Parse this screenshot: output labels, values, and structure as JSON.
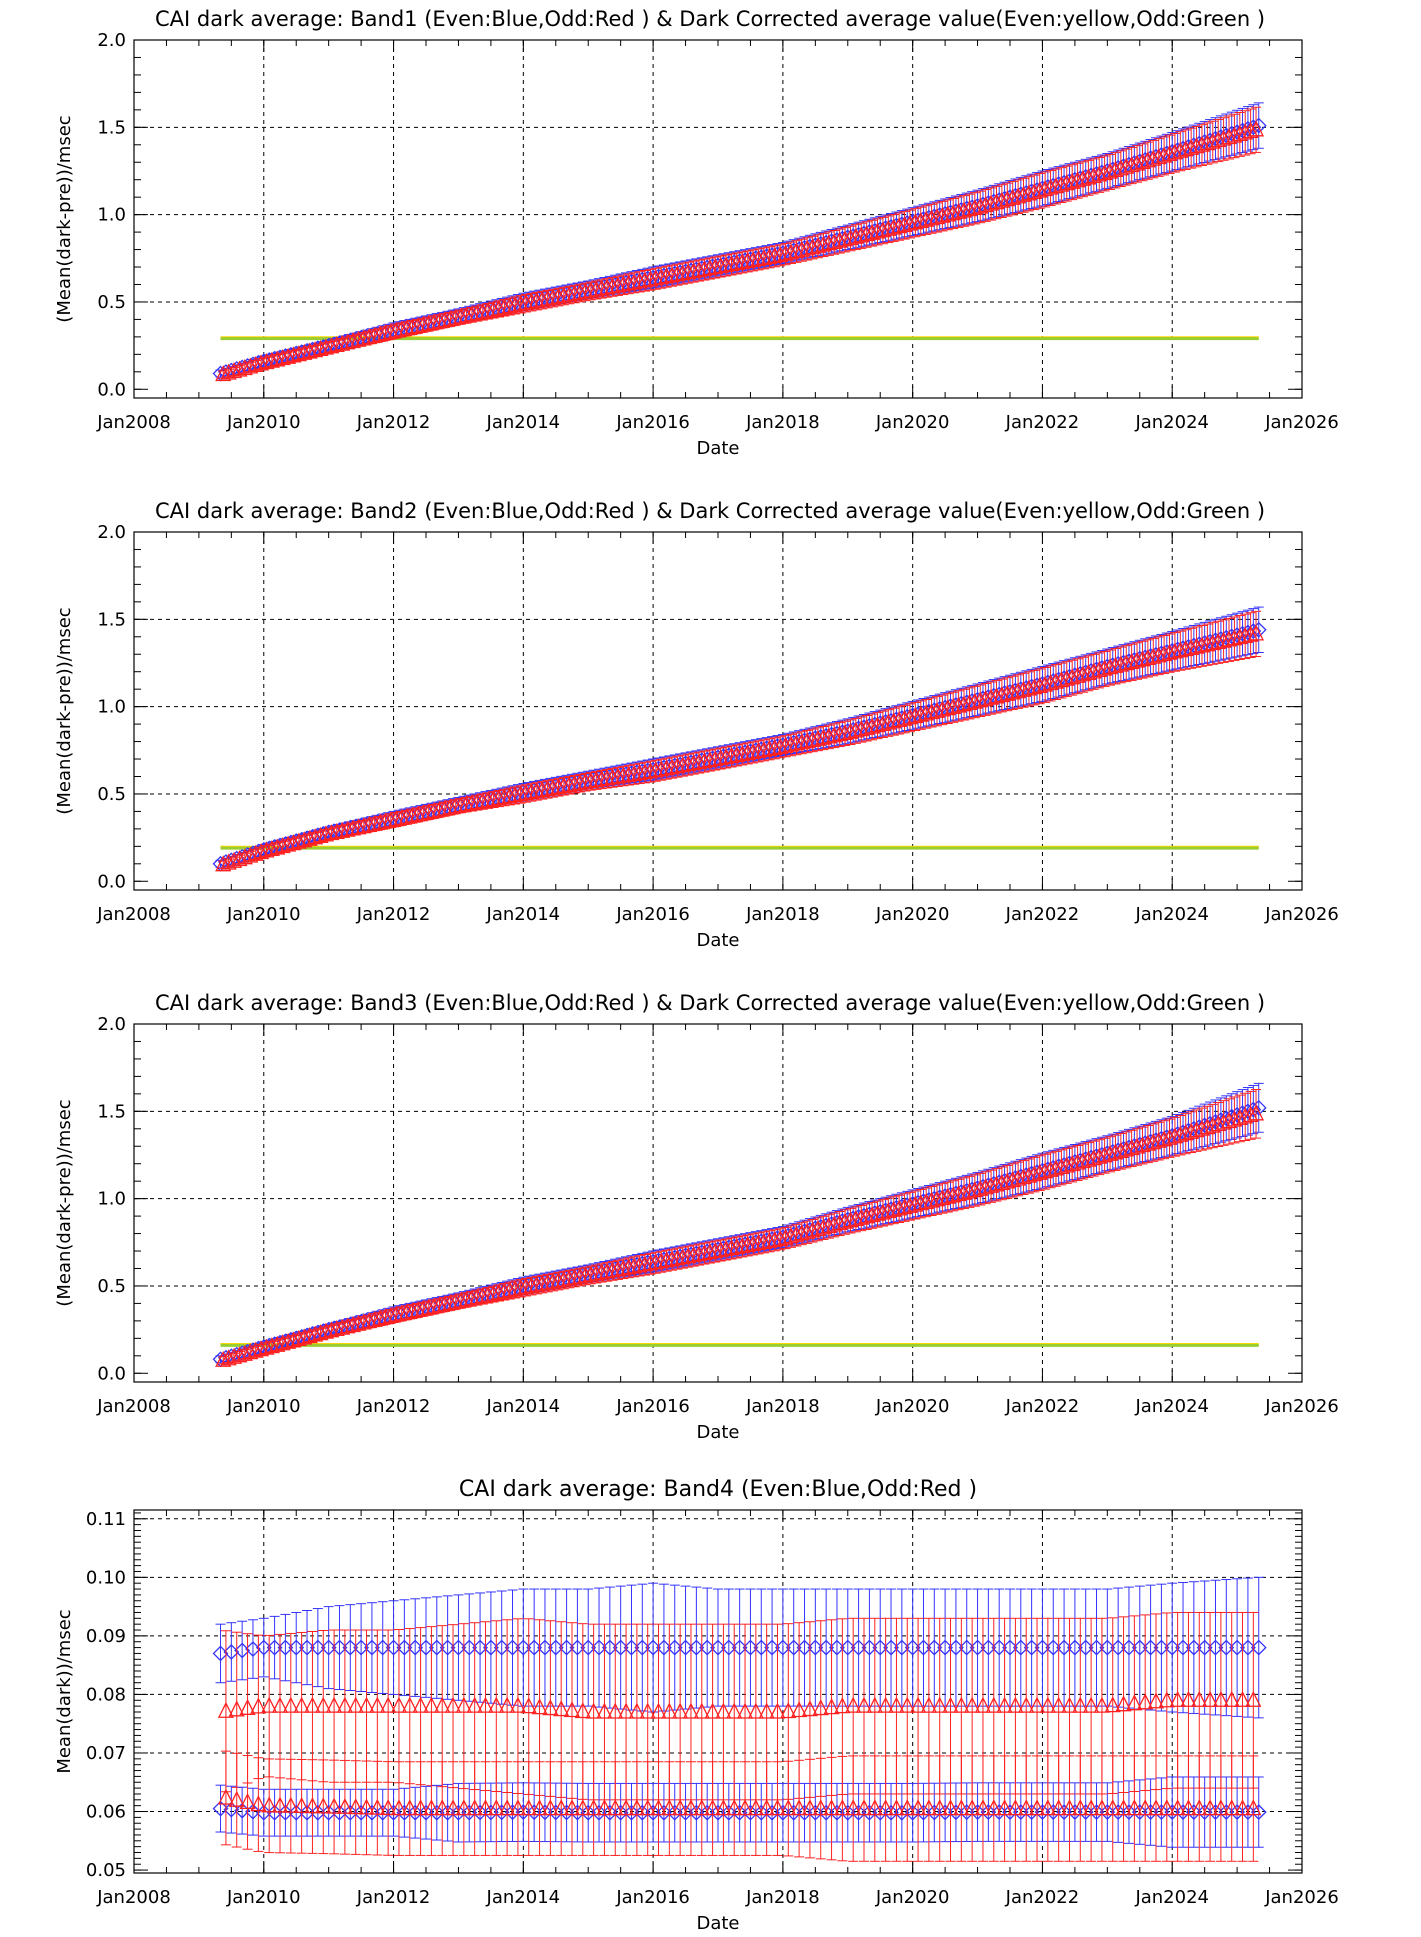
{
  "chart_data": [
    {
      "type": "scatter",
      "title": "CAI dark average: Band1 (Even:Blue,Odd:Red ) & Dark Corrected average value(Even:yellow,Odd:Green )",
      "xlabel": "Date",
      "ylabel": "(Mean(dark-pre))/msec",
      "x_tick_labels": [
        "Jan2008",
        "Jan2010",
        "Jan2012",
        "Jan2014",
        "Jan2016",
        "Jan2018",
        "Jan2020",
        "Jan2022",
        "Jan2024",
        "Jan2026"
      ],
      "y_tick_labels": [
        "0.0",
        "0.5",
        "1.0",
        "1.5",
        "2.0"
      ],
      "xlim": [
        "2008-01",
        "2026-01"
      ],
      "ylim": [
        -0.05,
        2.0
      ],
      "grid": "dashed",
      "x": [
        "2009-05",
        "2010-01",
        "2011-01",
        "2012-01",
        "2013-01",
        "2014-01",
        "2015-01",
        "2016-01",
        "2017-01",
        "2018-01",
        "2019-01",
        "2020-01",
        "2021-01",
        "2022-01",
        "2023-01",
        "2024-01",
        "2025-05"
      ],
      "series": [
        {
          "name": "Even",
          "color": "#3333ff",
          "marker": "diamond",
          "values": [
            0.09,
            0.16,
            0.25,
            0.34,
            0.42,
            0.5,
            0.57,
            0.64,
            0.71,
            0.78,
            0.87,
            0.96,
            1.05,
            1.15,
            1.25,
            1.36,
            1.51
          ],
          "error": [
            0.02,
            0.03,
            0.03,
            0.04,
            0.04,
            0.05,
            0.05,
            0.06,
            0.06,
            0.06,
            0.07,
            0.08,
            0.09,
            0.1,
            0.1,
            0.11,
            0.13
          ]
        },
        {
          "name": "Odd",
          "color": "#ff2020",
          "marker": "triangle",
          "values": [
            0.08,
            0.15,
            0.24,
            0.33,
            0.41,
            0.49,
            0.56,
            0.63,
            0.7,
            0.77,
            0.86,
            0.95,
            1.04,
            1.14,
            1.24,
            1.35,
            1.49
          ],
          "error": [
            0.02,
            0.03,
            0.03,
            0.04,
            0.04,
            0.05,
            0.05,
            0.06,
            0.06,
            0.06,
            0.07,
            0.08,
            0.09,
            0.1,
            0.1,
            0.11,
            0.13
          ]
        }
      ],
      "reference_lines": [
        {
          "color": "#ffd700",
          "y": 0.295
        },
        {
          "color": "#9acd32",
          "y": 0.29
        }
      ]
    },
    {
      "type": "scatter",
      "title": "CAI dark average: Band2 (Even:Blue,Odd:Red ) & Dark Corrected average value(Even:yellow,Odd:Green )",
      "xlabel": "Date",
      "ylabel": "(Mean(dark-pre))/msec",
      "x_tick_labels": [
        "Jan2008",
        "Jan2010",
        "Jan2012",
        "Jan2014",
        "Jan2016",
        "Jan2018",
        "Jan2020",
        "Jan2022",
        "Jan2024",
        "Jan2026"
      ],
      "y_tick_labels": [
        "0.0",
        "0.5",
        "1.0",
        "1.5",
        "2.0"
      ],
      "xlim": [
        "2008-01",
        "2026-01"
      ],
      "ylim": [
        -0.05,
        2.0
      ],
      "grid": "dashed",
      "x": [
        "2009-05",
        "2010-01",
        "2011-01",
        "2012-01",
        "2013-01",
        "2014-01",
        "2015-01",
        "2016-01",
        "2017-01",
        "2018-01",
        "2019-01",
        "2020-01",
        "2021-01",
        "2022-01",
        "2023-01",
        "2024-01",
        "2025-05"
      ],
      "series": [
        {
          "name": "Even",
          "color": "#3333ff",
          "marker": "diamond",
          "values": [
            0.1,
            0.18,
            0.28,
            0.36,
            0.44,
            0.51,
            0.58,
            0.64,
            0.71,
            0.78,
            0.86,
            0.95,
            1.04,
            1.13,
            1.23,
            1.32,
            1.44
          ],
          "error": [
            0.02,
            0.03,
            0.03,
            0.04,
            0.04,
            0.05,
            0.05,
            0.06,
            0.06,
            0.06,
            0.07,
            0.08,
            0.09,
            0.1,
            0.1,
            0.11,
            0.13
          ]
        },
        {
          "name": "Odd",
          "color": "#ff2020",
          "marker": "triangle",
          "values": [
            0.09,
            0.17,
            0.27,
            0.35,
            0.43,
            0.5,
            0.57,
            0.63,
            0.7,
            0.77,
            0.85,
            0.94,
            1.03,
            1.12,
            1.22,
            1.31,
            1.42
          ],
          "error": [
            0.02,
            0.03,
            0.03,
            0.04,
            0.04,
            0.05,
            0.05,
            0.06,
            0.06,
            0.06,
            0.07,
            0.08,
            0.09,
            0.1,
            0.1,
            0.11,
            0.13
          ]
        }
      ],
      "reference_lines": [
        {
          "color": "#ffd700",
          "y": 0.195
        },
        {
          "color": "#9acd32",
          "y": 0.19
        }
      ]
    },
    {
      "type": "scatter",
      "title": "CAI dark average: Band3 (Even:Blue,Odd:Red ) & Dark Corrected average value(Even:yellow,Odd:Green )",
      "xlabel": "Date",
      "ylabel": "(Mean(dark-pre))/msec",
      "x_tick_labels": [
        "Jan2008",
        "Jan2010",
        "Jan2012",
        "Jan2014",
        "Jan2016",
        "Jan2018",
        "Jan2020",
        "Jan2022",
        "Jan2024",
        "Jan2026"
      ],
      "y_tick_labels": [
        "0.0",
        "0.5",
        "1.0",
        "1.5",
        "2.0"
      ],
      "xlim": [
        "2008-01",
        "2026-01"
      ],
      "ylim": [
        -0.05,
        2.0
      ],
      "grid": "dashed",
      "x": [
        "2009-05",
        "2010-01",
        "2011-01",
        "2012-01",
        "2013-01",
        "2014-01",
        "2015-01",
        "2016-01",
        "2017-01",
        "2018-01",
        "2019-01",
        "2020-01",
        "2021-01",
        "2022-01",
        "2023-01",
        "2024-01",
        "2025-05"
      ],
      "series": [
        {
          "name": "Even",
          "color": "#3333ff",
          "marker": "diamond",
          "values": [
            0.08,
            0.15,
            0.25,
            0.34,
            0.42,
            0.5,
            0.57,
            0.64,
            0.71,
            0.78,
            0.88,
            0.97,
            1.06,
            1.16,
            1.26,
            1.36,
            1.52
          ],
          "error": [
            0.02,
            0.03,
            0.03,
            0.04,
            0.04,
            0.05,
            0.05,
            0.06,
            0.06,
            0.06,
            0.07,
            0.08,
            0.09,
            0.1,
            0.1,
            0.11,
            0.14
          ]
        },
        {
          "name": "Odd",
          "color": "#ff2020",
          "marker": "triangle",
          "values": [
            0.07,
            0.14,
            0.24,
            0.33,
            0.41,
            0.49,
            0.56,
            0.63,
            0.7,
            0.77,
            0.87,
            0.96,
            1.05,
            1.15,
            1.25,
            1.35,
            1.49
          ],
          "error": [
            0.02,
            0.03,
            0.03,
            0.04,
            0.04,
            0.05,
            0.05,
            0.06,
            0.06,
            0.06,
            0.07,
            0.08,
            0.09,
            0.1,
            0.1,
            0.11,
            0.14
          ]
        }
      ],
      "reference_lines": [
        {
          "color": "#ffd700",
          "y": 0.165
        },
        {
          "color": "#9acd32",
          "y": 0.16
        }
      ]
    },
    {
      "type": "scatter",
      "title": "CAI dark average: Band4 (Even:Blue,Odd:Red )",
      "xlabel": "Date",
      "ylabel": "Mean(dark))/msec",
      "x_tick_labels": [
        "Jan2008",
        "Jan2010",
        "Jan2012",
        "Jan2014",
        "Jan2016",
        "Jan2018",
        "Jan2020",
        "Jan2022",
        "Jan2024",
        "Jan2026"
      ],
      "y_tick_labels": [
        "0.05",
        "0.06",
        "0.07",
        "0.08",
        "0.09",
        "0.10",
        "0.11"
      ],
      "xlim": [
        "2008-01",
        "2026-01"
      ],
      "ylim": [
        0.0495,
        0.1115
      ],
      "grid": "dashed",
      "x": [
        "2009-05",
        "2010-01",
        "2011-01",
        "2012-01",
        "2013-01",
        "2014-01",
        "2015-01",
        "2016-01",
        "2017-01",
        "2018-01",
        "2019-01",
        "2020-01",
        "2021-01",
        "2022-01",
        "2023-01",
        "2024-01",
        "2025-05"
      ],
      "series": [
        {
          "name": "Even (upper)",
          "color": "#3333ff",
          "marker": "diamond",
          "values": [
            0.087,
            0.088,
            0.088,
            0.088,
            0.088,
            0.088,
            0.088,
            0.088,
            0.088,
            0.088,
            0.088,
            0.088,
            0.088,
            0.088,
            0.088,
            0.088,
            0.088
          ],
          "error": [
            0.005,
            0.005,
            0.007,
            0.008,
            0.009,
            0.01,
            0.01,
            0.011,
            0.01,
            0.01,
            0.01,
            0.01,
            0.01,
            0.01,
            0.01,
            0.011,
            0.012
          ]
        },
        {
          "name": "Odd (upper)",
          "color": "#ff2020",
          "marker": "triangle",
          "values": [
            0.077,
            0.078,
            0.078,
            0.078,
            0.078,
            0.078,
            0.077,
            0.077,
            0.077,
            0.077,
            0.078,
            0.078,
            0.078,
            0.078,
            0.078,
            0.079,
            0.079
          ],
          "error": [
            0.014,
            0.012,
            0.013,
            0.013,
            0.014,
            0.015,
            0.015,
            0.015,
            0.015,
            0.015,
            0.015,
            0.015,
            0.015,
            0.015,
            0.015,
            0.015,
            0.015
          ]
        },
        {
          "name": "Even (lower)",
          "color": "#3333ff",
          "marker": "diamond",
          "values": [
            0.0605,
            0.0598,
            0.0598,
            0.0598,
            0.0598,
            0.0599,
            0.0598,
            0.0598,
            0.0598,
            0.0598,
            0.0598,
            0.0598,
            0.0599,
            0.0599,
            0.0599,
            0.0599,
            0.0599
          ],
          "error": [
            0.004,
            0.004,
            0.004,
            0.004,
            0.005,
            0.005,
            0.005,
            0.005,
            0.005,
            0.005,
            0.005,
            0.005,
            0.005,
            0.005,
            0.005,
            0.006,
            0.006
          ]
        },
        {
          "name": "Odd (lower)",
          "color": "#ff2020",
          "marker": "triangle",
          "values": [
            0.0625,
            0.061,
            0.0608,
            0.0605,
            0.0605,
            0.0605,
            0.0605,
            0.0605,
            0.0605,
            0.0605,
            0.0605,
            0.0605,
            0.0605,
            0.0605,
            0.0605,
            0.0605,
            0.0605
          ],
          "error": [
            0.008,
            0.008,
            0.008,
            0.008,
            0.008,
            0.008,
            0.008,
            0.008,
            0.008,
            0.008,
            0.009,
            0.009,
            0.009,
            0.009,
            0.009,
            0.009,
            0.009
          ]
        }
      ]
    }
  ]
}
